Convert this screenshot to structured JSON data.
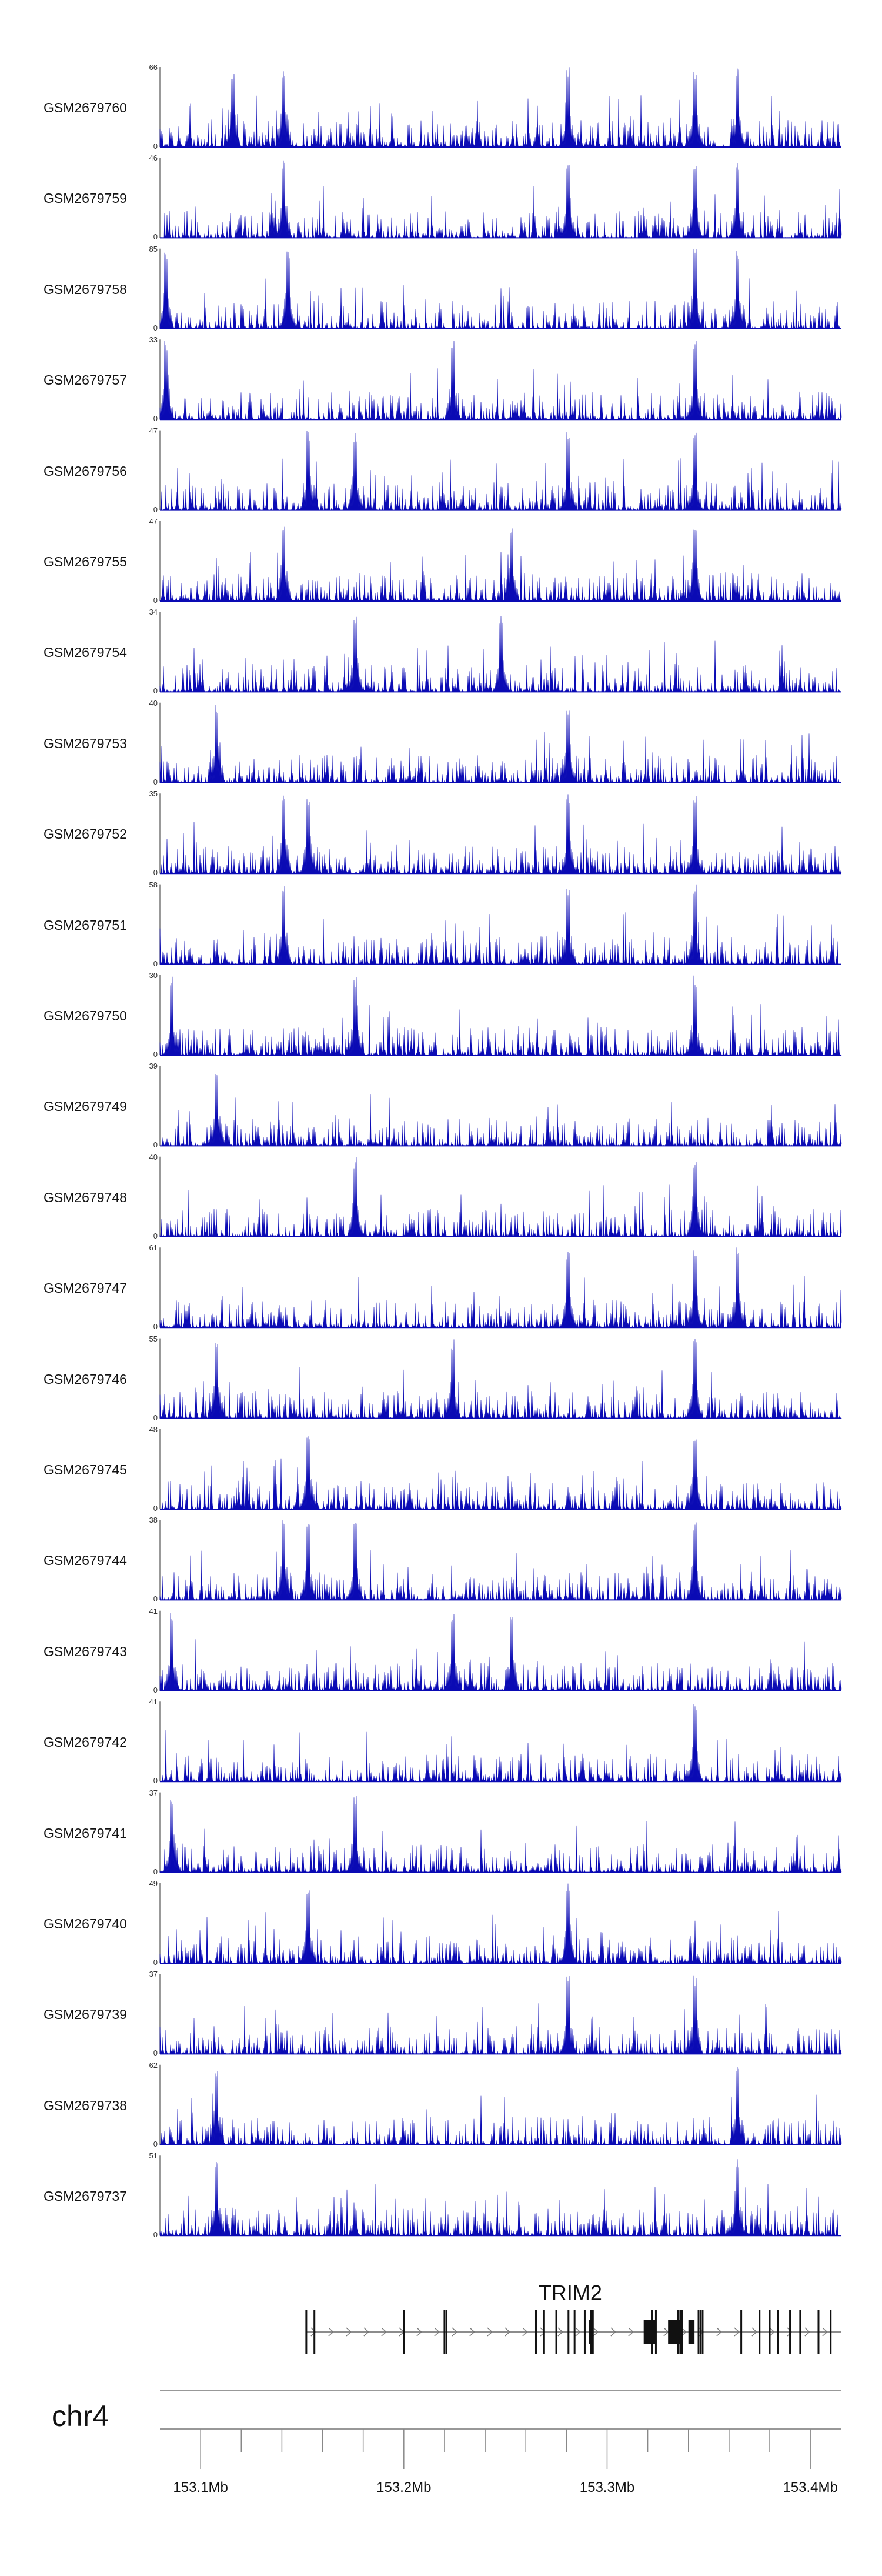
{
  "chart_data": {
    "type": "area",
    "color": "#0a0ab4",
    "x_range": [
      153.08,
      153.415
    ],
    "x_unit": "Mb",
    "chromosome": "chr4",
    "tracks": [
      {
        "name": "GSM2679760",
        "ymax": "66",
        "ymin": "0",
        "peaks": [
          153.116,
          153.141,
          153.281,
          153.343,
          153.364
        ]
      },
      {
        "name": "GSM2679759",
        "ymax": "46",
        "ymin": "0",
        "peaks": [
          153.141,
          153.281,
          153.343,
          153.364
        ]
      },
      {
        "name": "GSM2679758",
        "ymax": "85",
        "ymin": "0",
        "peaks": [
          153.083,
          153.143,
          153.343,
          153.364
        ]
      },
      {
        "name": "GSM2679757",
        "ymax": "33",
        "ymin": "0",
        "peaks": [
          153.083,
          153.224,
          153.343
        ]
      },
      {
        "name": "GSM2679756",
        "ymax": "47",
        "ymin": "0",
        "peaks": [
          153.153,
          153.176,
          153.281,
          153.343
        ]
      },
      {
        "name": "GSM2679755",
        "ymax": "47",
        "ymin": "0",
        "peaks": [
          153.141,
          153.253,
          153.343
        ]
      },
      {
        "name": "GSM2679754",
        "ymax": "34",
        "ymin": "0",
        "peaks": [
          153.176,
          153.248
        ]
      },
      {
        "name": "GSM2679753",
        "ymax": "40",
        "ymin": "0",
        "peaks": [
          153.108,
          153.281
        ]
      },
      {
        "name": "GSM2679752",
        "ymax": "35",
        "ymin": "0",
        "peaks": [
          153.141,
          153.153,
          153.281,
          153.343
        ]
      },
      {
        "name": "GSM2679751",
        "ymax": "58",
        "ymin": "0",
        "peaks": [
          153.141,
          153.281,
          153.343
        ]
      },
      {
        "name": "GSM2679750",
        "ymax": "30",
        "ymin": "0",
        "peaks": [
          153.086,
          153.176,
          153.343
        ]
      },
      {
        "name": "GSM2679749",
        "ymax": "39",
        "ymin": "0",
        "peaks": [
          153.108
        ]
      },
      {
        "name": "GSM2679748",
        "ymax": "40",
        "ymin": "0",
        "peaks": [
          153.343,
          153.176
        ]
      },
      {
        "name": "GSM2679747",
        "ymax": "61",
        "ymin": "0",
        "peaks": [
          153.281,
          153.343,
          153.364
        ]
      },
      {
        "name": "GSM2679746",
        "ymax": "55",
        "ymin": "0",
        "peaks": [
          153.108,
          153.224,
          153.343
        ]
      },
      {
        "name": "GSM2679745",
        "ymax": "48",
        "ymin": "0",
        "peaks": [
          153.153,
          153.343
        ]
      },
      {
        "name": "GSM2679744",
        "ymax": "38",
        "ymin": "0",
        "peaks": [
          153.141,
          153.153,
          153.176,
          153.343
        ]
      },
      {
        "name": "GSM2679743",
        "ymax": "41",
        "ymin": "0",
        "peaks": [
          153.086,
          153.224,
          153.253
        ]
      },
      {
        "name": "GSM2679742",
        "ymax": "41",
        "ymin": "0",
        "peaks": [
          153.343
        ]
      },
      {
        "name": "GSM2679741",
        "ymax": "37",
        "ymin": "0",
        "peaks": [
          153.086,
          153.176
        ]
      },
      {
        "name": "GSM2679740",
        "ymax": "49",
        "ymin": "0",
        "peaks": [
          153.153,
          153.281
        ]
      },
      {
        "name": "GSM2679739",
        "ymax": "37",
        "ymin": "0",
        "peaks": [
          153.281,
          153.343
        ]
      },
      {
        "name": "GSM2679738",
        "ymax": "62",
        "ymin": "0",
        "peaks": [
          153.108,
          153.364
        ]
      },
      {
        "name": "GSM2679737",
        "ymax": "51",
        "ymin": "0",
        "peaks": [
          153.108,
          153.364
        ]
      }
    ],
    "gene": {
      "name": "TRIM2",
      "start": 153.152,
      "end": 153.415,
      "exons": [
        153.152,
        153.156,
        153.2,
        153.22,
        153.221,
        153.265,
        153.269,
        153.275,
        153.281,
        153.284,
        153.289,
        153.292,
        153.293,
        153.322,
        153.324,
        153.335,
        153.336,
        153.337,
        153.345,
        153.346,
        153.347,
        153.366,
        153.375,
        153.38,
        153.384,
        153.39,
        153.395,
        153.404,
        153.41
      ],
      "block_exons": [
        [
          153.291,
          153.293
        ],
        [
          153.318,
          153.324
        ],
        [
          153.33,
          153.336
        ],
        [
          153.34,
          153.343
        ]
      ]
    },
    "x_ticks": [
      {
        "value": 153.1,
        "label": "153.1Mb"
      },
      {
        "value": 153.2,
        "label": "153.2Mb"
      },
      {
        "value": 153.3,
        "label": "153.3Mb"
      },
      {
        "value": 153.4,
        "label": "153.4Mb"
      }
    ],
    "x_minor_ticks": [
      153.1,
      153.12,
      153.14,
      153.16,
      153.18,
      153.2,
      153.22,
      153.24,
      153.26,
      153.28,
      153.3,
      153.32,
      153.34,
      153.36,
      153.38,
      153.4
    ]
  }
}
